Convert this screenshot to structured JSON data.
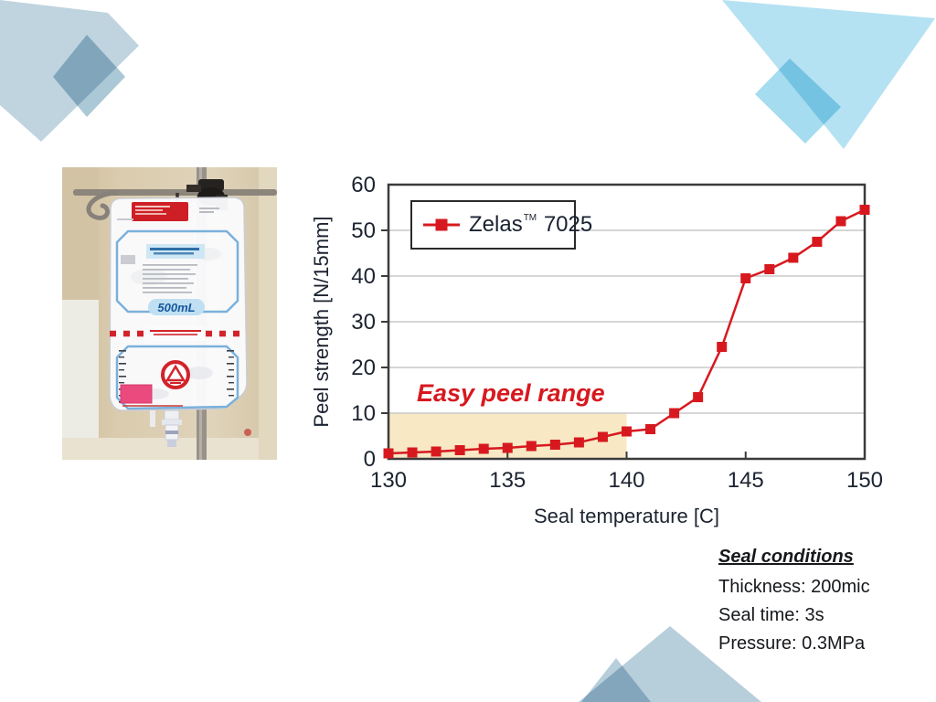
{
  "slide": {
    "background": "#ffffff"
  },
  "decorations": {
    "top_left_color": "#c0d4e0",
    "top_left_diamond_color": "#abc8d6",
    "top_right_color": "#b5e2f2",
    "top_right_square_color": "#a5dcef",
    "bottom_mountain_color": "#b7cedb"
  },
  "photo": {
    "alt": "IV infusion bag hanging on a metal pole",
    "volume_label": "500mL"
  },
  "chart_data": {
    "type": "line",
    "title": "",
    "series": [
      {
        "name": "Zelas™ 7025",
        "x": [
          130,
          131,
          132,
          133,
          134,
          135,
          136,
          137,
          138,
          139,
          140,
          141,
          142,
          143,
          144,
          145,
          146,
          147,
          148,
          149,
          150
        ],
        "values": [
          1.2,
          1.4,
          1.6,
          1.9,
          2.2,
          2.4,
          2.8,
          3.1,
          3.6,
          4.8,
          6.0,
          6.5,
          10,
          13.5,
          24.5,
          39.5,
          41.5,
          44,
          47.5,
          52,
          54.5
        ]
      }
    ],
    "xlabel": "Seal temperature [C]",
    "ylabel": "Peel strength [N/15mm]",
    "xlim": [
      130,
      150
    ],
    "ylim": [
      0,
      60
    ],
    "xticks": [
      130,
      135,
      140,
      145,
      150
    ],
    "yticks": [
      0,
      10,
      20,
      30,
      40,
      50,
      60
    ],
    "grid": "horizontal",
    "legend_position": "top-left",
    "marker": "square",
    "line_color": "#d7191f",
    "annotation": {
      "text": "Easy peel range",
      "color": "#d7191f"
    },
    "highlight_region": {
      "x0": 130,
      "x1": 140,
      "y0": 0,
      "y1": 10,
      "color": "#f8e8c4",
      "label": "Easy peel range"
    }
  },
  "legend": {
    "name_pre": "Zelas",
    "tm": "TM",
    "name_post": "7025"
  },
  "seal_conditions": {
    "title": "Seal conditions",
    "lines": [
      "Thickness: 200mic",
      "Seal time: 3s",
      "Pressure: 0.3MPa"
    ]
  }
}
